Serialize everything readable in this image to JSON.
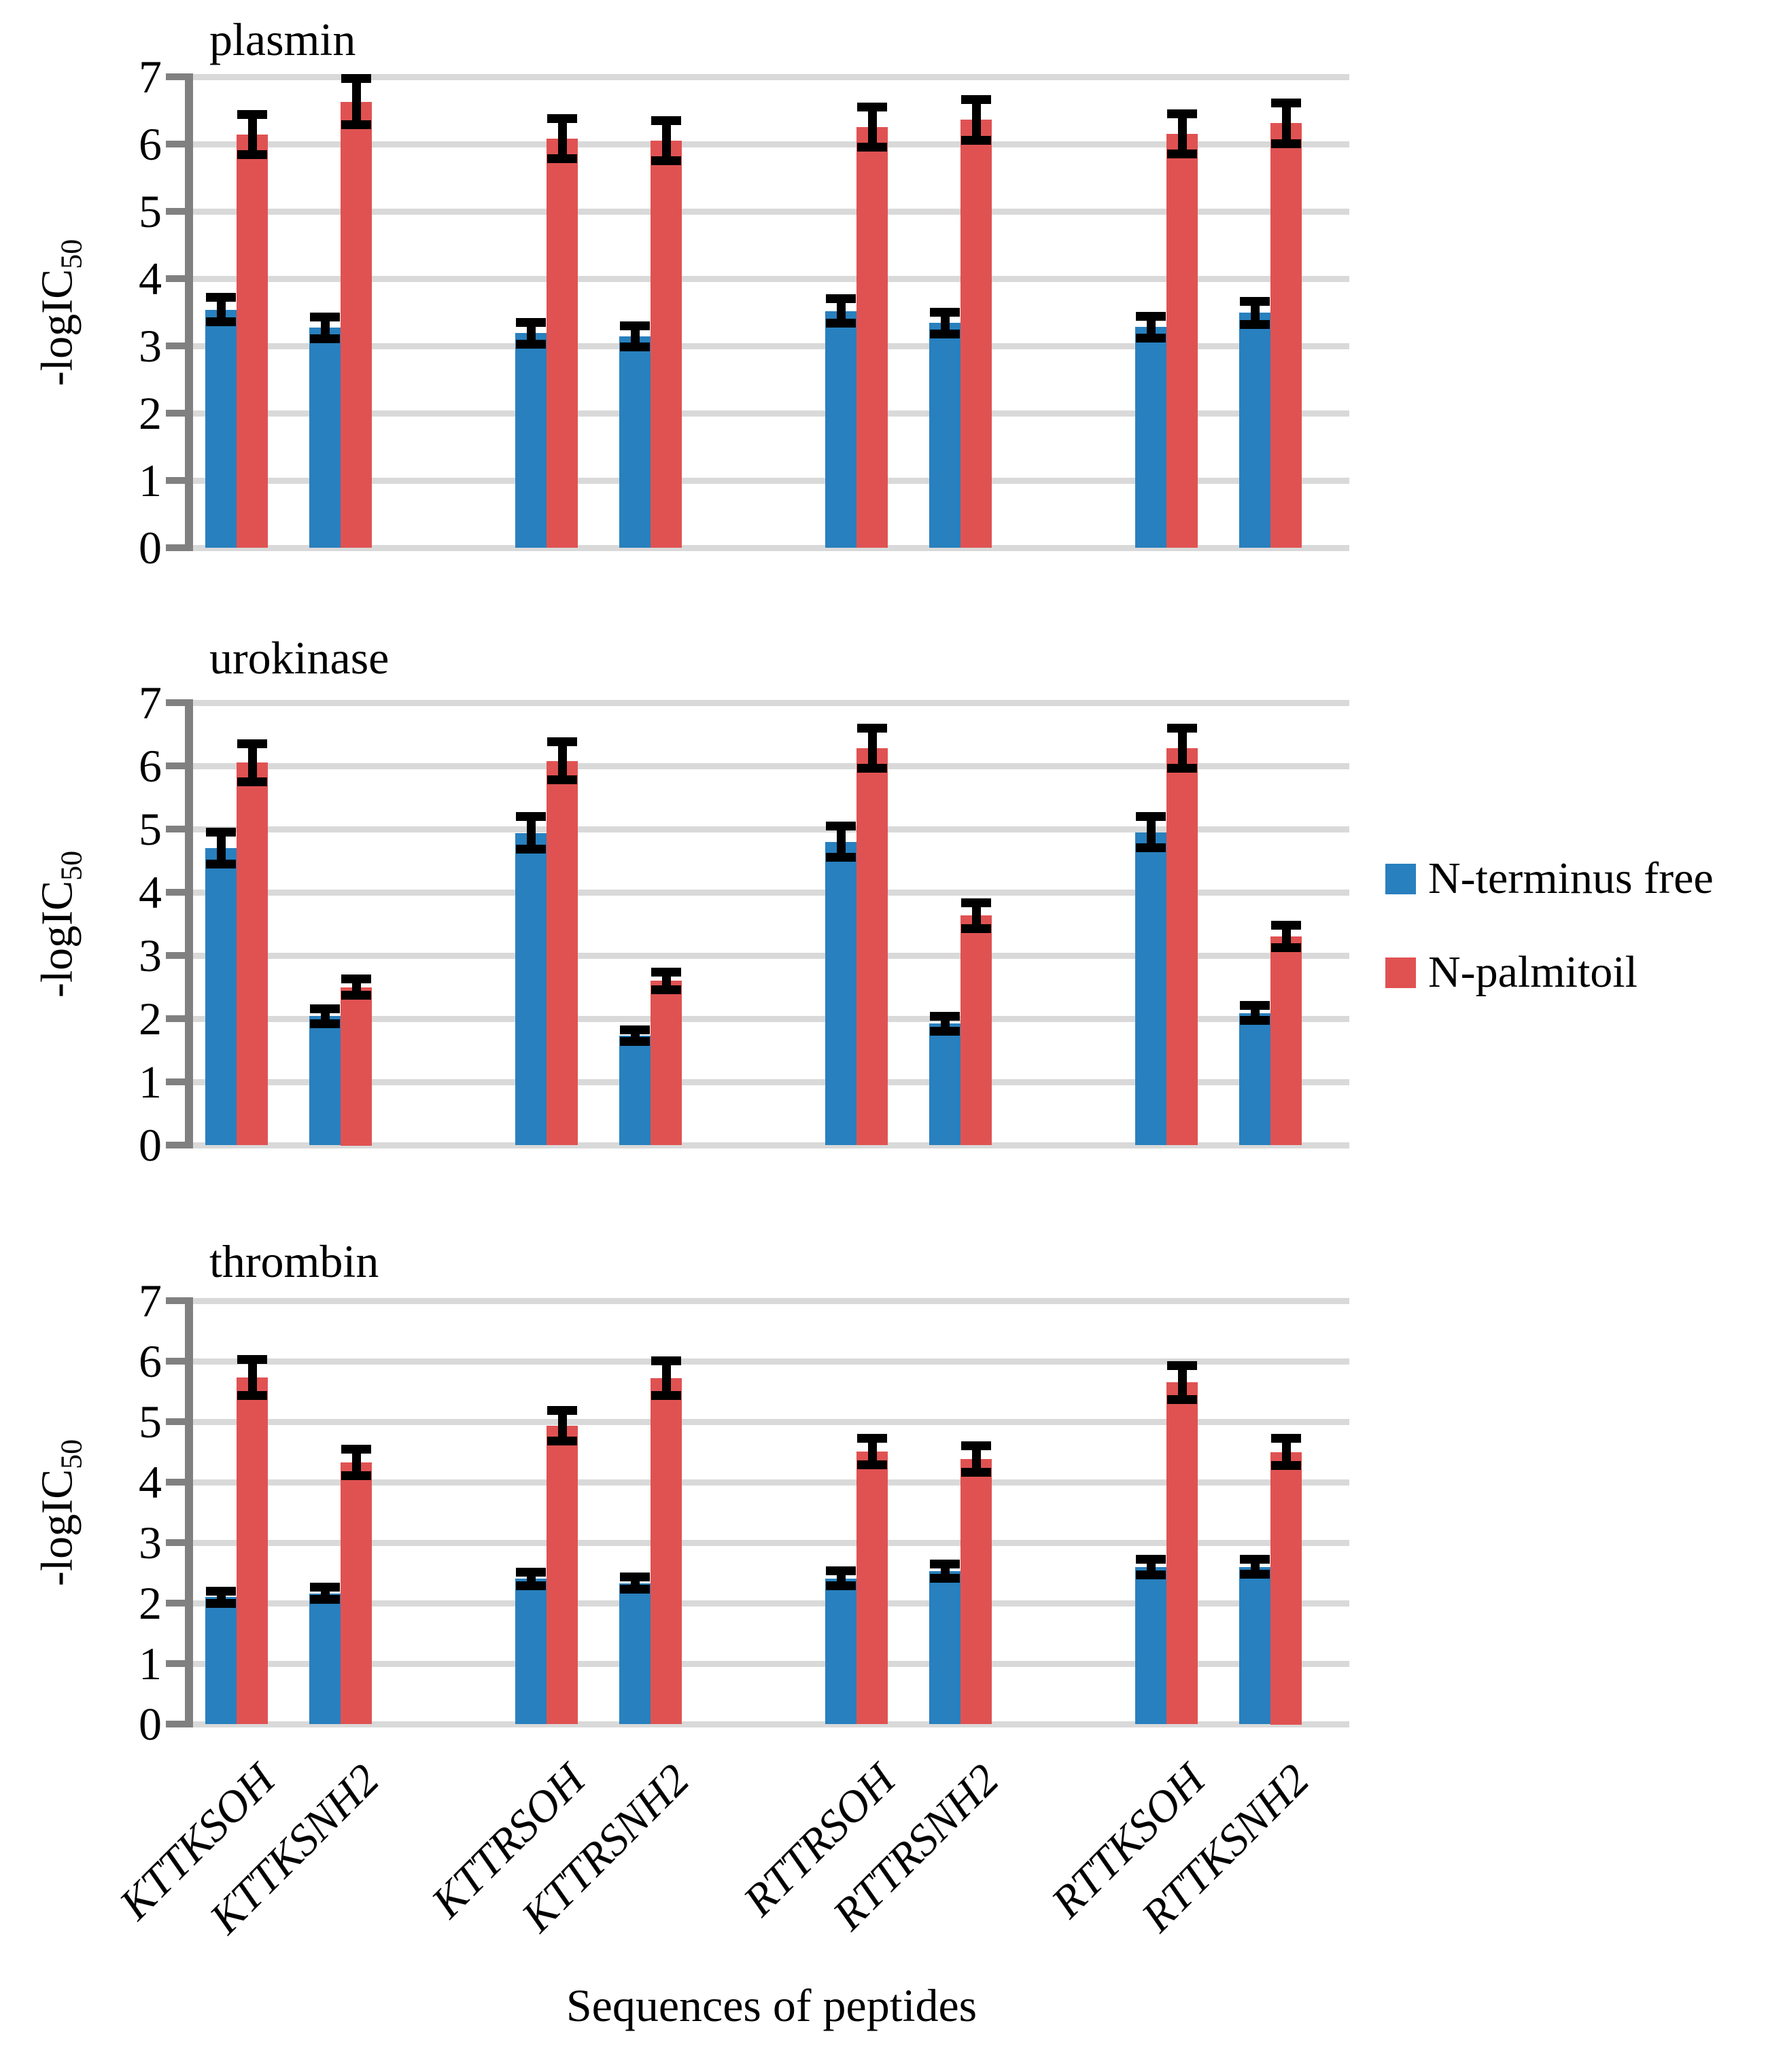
{
  "figure": {
    "background": "#ffffff",
    "y_axis_label": {
      "main": "-logIC",
      "sub": "50"
    },
    "x_axis_label": "Sequences of peptides",
    "legend": [
      {
        "label": "N-terminus free",
        "color": "#2880BE"
      },
      {
        "label": "N-palmitoil",
        "color": "#E05252"
      }
    ],
    "legend_position": "right-center",
    "colors": {
      "gridline": "#D9D9D9",
      "axis": "#808080",
      "error_bar": "#000000"
    }
  },
  "chart_data": [
    {
      "type": "bar",
      "title": "plasmin",
      "categories": [
        "KTTKSOH",
        "KTTKSNH2",
        "KTTRSOH",
        "KTTRSNH2",
        "RTTRSOH",
        "RTTRSNH2",
        "RTTKSOH",
        "RTTKSNH2"
      ],
      "series": [
        {
          "name": "N-terminus free",
          "color": "#2880BE",
          "values": [
            3.54,
            3.27,
            3.19,
            3.14,
            3.52,
            3.34,
            3.28,
            3.49
          ],
          "errors": [
            0.18,
            0.16,
            0.16,
            0.16,
            0.18,
            0.16,
            0.16,
            0.17
          ]
        },
        {
          "name": "N-palmitoil",
          "color": "#E05252",
          "values": [
            6.14,
            6.63,
            6.08,
            6.05,
            6.25,
            6.36,
            6.15,
            6.31
          ],
          "errors": [
            0.3,
            0.34,
            0.3,
            0.3,
            0.3,
            0.3,
            0.3,
            0.3
          ]
        }
      ],
      "ylabel": "-logIC50",
      "xlabel": "",
      "ylim": [
        0,
        7
      ],
      "yticks": [
        0,
        1,
        2,
        3,
        4,
        5,
        6,
        7
      ],
      "grid": true
    },
    {
      "type": "bar",
      "title": "urokinase",
      "categories": [
        "KTTKSOH",
        "KTTKSNH2",
        "KTTRSOH",
        "KTTRSNH2",
        "RTTRSOH",
        "RTTRSNH2",
        "RTTKSOH",
        "RTTKSNH2"
      ],
      "series": [
        {
          "name": "N-terminus free",
          "color": "#2880BE",
          "values": [
            4.7,
            2.04,
            4.94,
            1.73,
            4.8,
            1.92,
            4.95,
            2.09
          ],
          "errors": [
            0.25,
            0.12,
            0.26,
            0.09,
            0.25,
            0.12,
            0.25,
            0.12
          ]
        },
        {
          "name": "N-palmitoil",
          "color": "#E05252",
          "values": [
            6.05,
            2.5,
            6.08,
            2.6,
            6.28,
            3.63,
            6.28,
            3.3
          ],
          "errors": [
            0.3,
            0.13,
            0.3,
            0.14,
            0.32,
            0.2,
            0.32,
            0.18
          ]
        }
      ],
      "ylabel": "-logIC50",
      "xlabel": "",
      "ylim": [
        0,
        7
      ],
      "yticks": [
        0,
        1,
        2,
        3,
        4,
        5,
        6,
        7
      ],
      "grid": true
    },
    {
      "type": "bar",
      "title": "thrombin",
      "categories": [
        "KTTKSOH",
        "KTTKSNH2",
        "KTTRSOH",
        "KTTRSNH2",
        "RTTRSOH",
        "RTTRSNH2",
        "RTTKSOH",
        "RTTKSNH2"
      ],
      "series": [
        {
          "name": "N-terminus free",
          "color": "#2880BE",
          "values": [
            2.1,
            2.16,
            2.4,
            2.33,
            2.41,
            2.53,
            2.6,
            2.6
          ],
          "errors": [
            0.1,
            0.1,
            0.11,
            0.1,
            0.12,
            0.12,
            0.13,
            0.12
          ]
        },
        {
          "name": "N-palmitoil",
          "color": "#E05252",
          "values": [
            5.73,
            4.33,
            4.93,
            5.72,
            4.51,
            4.38,
            5.65,
            4.5
          ],
          "errors": [
            0.3,
            0.22,
            0.25,
            0.29,
            0.22,
            0.22,
            0.28,
            0.22
          ]
        }
      ],
      "ylabel": "-logIC50",
      "xlabel": "Sequences of peptides",
      "ylim": [
        0,
        7
      ],
      "yticks": [
        0,
        1,
        2,
        3,
        4,
        5,
        6,
        7
      ],
      "grid": true
    }
  ]
}
